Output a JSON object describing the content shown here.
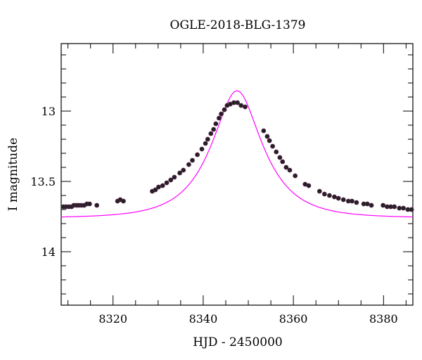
{
  "chart_data": {
    "type": "scatter",
    "title": "OGLE-2018-BLG-1379",
    "xlabel": "HJD - 2450000",
    "ylabel": "I magnitude",
    "xlim": [
      8308.5,
      8386.5
    ],
    "ylim": [
      14.38,
      12.52
    ],
    "y_inverted": true,
    "grid": false,
    "x_ticks": [
      8320,
      8340,
      8360,
      8380
    ],
    "x_tick_labels": [
      "8320",
      "8340",
      "8360",
      "8380"
    ],
    "y_ticks": [
      13,
      13.5,
      14
    ],
    "y_tick_labels": [
      "13",
      "13.5",
      "14"
    ],
    "colors": {
      "points": "#222222",
      "point_edge": "#5a1f4e",
      "model": "#ff00ff",
      "frame": "#000000"
    },
    "model": {
      "name": "",
      "t0": 8347.5,
      "tE": 10.0,
      "u0": 0.47,
      "baseline_mag": 13.76
    },
    "series": [
      {
        "name": "",
        "x": [
          8309.0,
          8309.6,
          8310.2,
          8310.8,
          8311.3,
          8311.9,
          8312.4,
          8313.0,
          8313.6,
          8314.2,
          8314.8,
          8316.4,
          8321.0,
          8321.6,
          8322.3,
          8328.7,
          8329.4,
          8330.1,
          8331.0,
          8331.9,
          8332.8,
          8333.6,
          8334.8,
          8335.6,
          8336.8,
          8337.6,
          8338.7,
          8339.7,
          8340.5,
          8341.0,
          8341.7,
          8342.3,
          8342.8,
          8343.5,
          8344.0,
          8344.7,
          8345.3,
          8346.0,
          8346.8,
          8347.6,
          8348.4,
          8349.3,
          8353.4,
          8354.2,
          8354.7,
          8355.4,
          8356.2,
          8357.0,
          8357.6,
          8358.4,
          8359.2,
          8360.4,
          8362.6,
          8363.4,
          8365.8,
          8366.9,
          8368.0,
          8369.1,
          8370.0,
          8371.1,
          8372.2,
          8373.0,
          8374.0,
          8375.6,
          8376.4,
          8377.3,
          8379.9,
          8380.8,
          8381.6,
          8382.4,
          8383.5,
          8384.4,
          8385.4,
          8386.2
        ],
        "y": [
          13.68,
          13.68,
          13.68,
          13.68,
          13.67,
          13.67,
          13.67,
          13.67,
          13.67,
          13.66,
          13.66,
          13.67,
          13.64,
          13.63,
          13.64,
          13.57,
          13.56,
          13.54,
          13.53,
          13.51,
          13.49,
          13.47,
          13.44,
          13.42,
          13.38,
          13.35,
          13.31,
          13.27,
          13.23,
          13.2,
          13.16,
          13.13,
          13.09,
          13.05,
          13.02,
          12.99,
          12.96,
          12.95,
          12.94,
          12.94,
          12.96,
          12.97,
          13.14,
          13.18,
          13.21,
          13.25,
          13.29,
          13.33,
          13.36,
          13.4,
          13.42,
          13.46,
          13.52,
          13.53,
          13.57,
          13.59,
          13.6,
          13.61,
          13.62,
          13.63,
          13.64,
          13.64,
          13.65,
          13.66,
          13.66,
          13.67,
          13.67,
          13.68,
          13.68,
          13.68,
          13.69,
          13.69,
          13.7,
          13.7
        ]
      }
    ]
  }
}
